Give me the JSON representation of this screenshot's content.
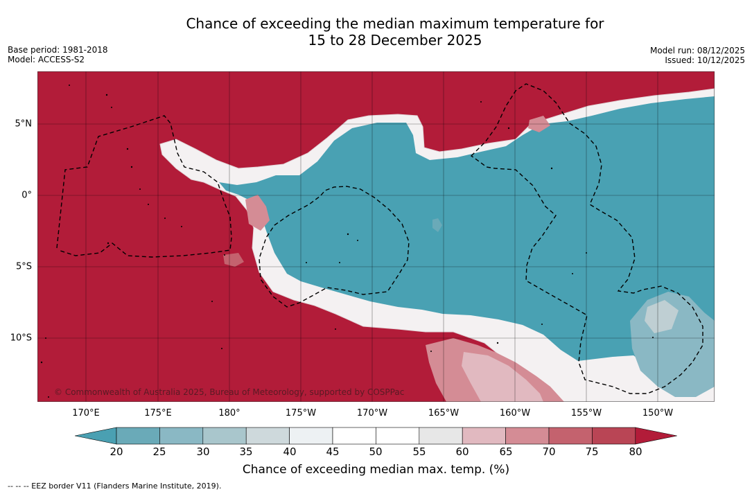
{
  "header": {
    "title_line1": "Chance of exceeding the median maximum temperature for",
    "title_line2": "15 to 28 December 2025",
    "base_period": "Base period: 1981-2018",
    "model": "Model: ACCESS-S2",
    "model_run": "Model run: 08/12/2025",
    "issued": "Issued: 10/12/2025"
  },
  "map": {
    "lon_ticks": [
      "170°E",
      "175°E",
      "180°",
      "175°W",
      "170°W",
      "165°W",
      "160°W",
      "155°W",
      "150°W"
    ],
    "lat_ticks": [
      "5°N",
      "0°",
      "5°S",
      "10°S"
    ],
    "copyright": "© Commonwealth of Australia 2025, Bureau of Meteorology, supported by COSPPac"
  },
  "colorbar": {
    "labels": [
      "20",
      "25",
      "30",
      "35",
      "40",
      "45",
      "50",
      "55",
      "60",
      "65",
      "70",
      "75",
      "80"
    ],
    "colors": [
      "#4aa0b2",
      "#6aaab8",
      "#8ab8c4",
      "#a9c6cc",
      "#ced9dc",
      "#edf1f3",
      "#ffffff",
      "#ffffff",
      "#e7e7e7",
      "#e1b9c0",
      "#d48c95",
      "#c4626e",
      "#b94555",
      "#b21c39"
    ],
    "title": "Chance of exceeding median max. temp. (%)"
  },
  "footer": {
    "legend": "--  --  -- EEZ border V11 (Flanders Marine Institute, 2019)."
  }
}
